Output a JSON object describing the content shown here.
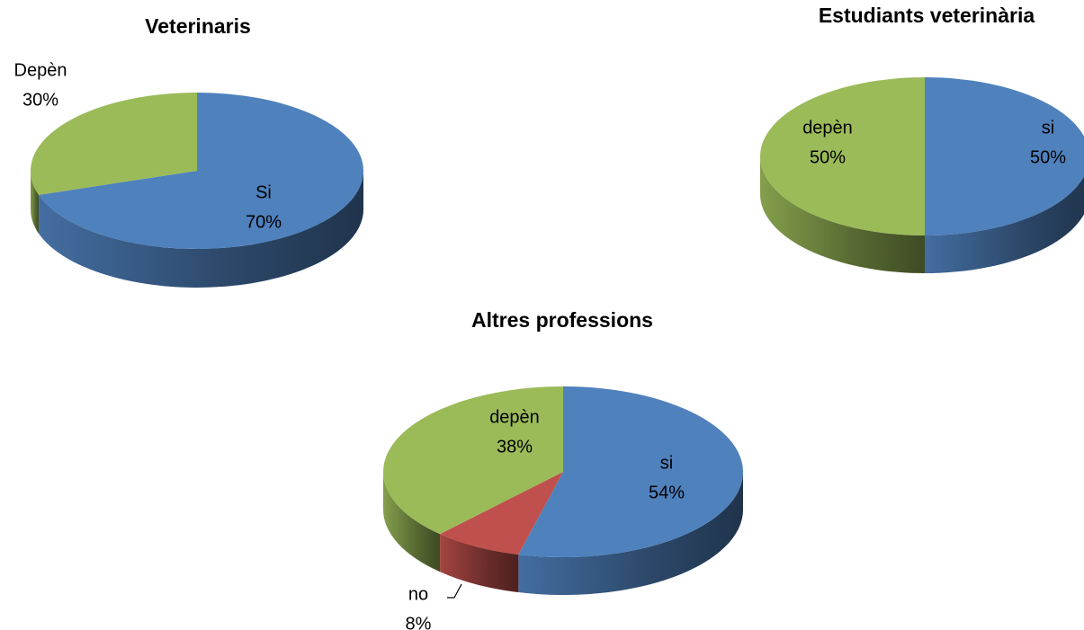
{
  "chart_data": [
    {
      "type": "pie",
      "title": "Veterinaris",
      "categories": [
        "Si",
        "Depèn"
      ],
      "values": [
        70,
        30
      ],
      "value_labels": [
        "70%",
        "30%"
      ],
      "colors": [
        "#4f81bd",
        "#9bbb59"
      ]
    },
    {
      "type": "pie",
      "title": "Estudiants veterinària",
      "categories": [
        "si",
        "depèn"
      ],
      "values": [
        50,
        50
      ],
      "value_labels": [
        "50%",
        "50%"
      ],
      "colors": [
        "#4f81bd",
        "#9bbb59"
      ]
    },
    {
      "type": "pie",
      "title": "Altres professions",
      "categories": [
        "si",
        "no",
        "depèn"
      ],
      "values": [
        54,
        8,
        38
      ],
      "value_labels": [
        "54%",
        "8%",
        "38%"
      ],
      "colors": [
        "#4f81bd",
        "#c0504d",
        "#9bbb59"
      ]
    }
  ]
}
